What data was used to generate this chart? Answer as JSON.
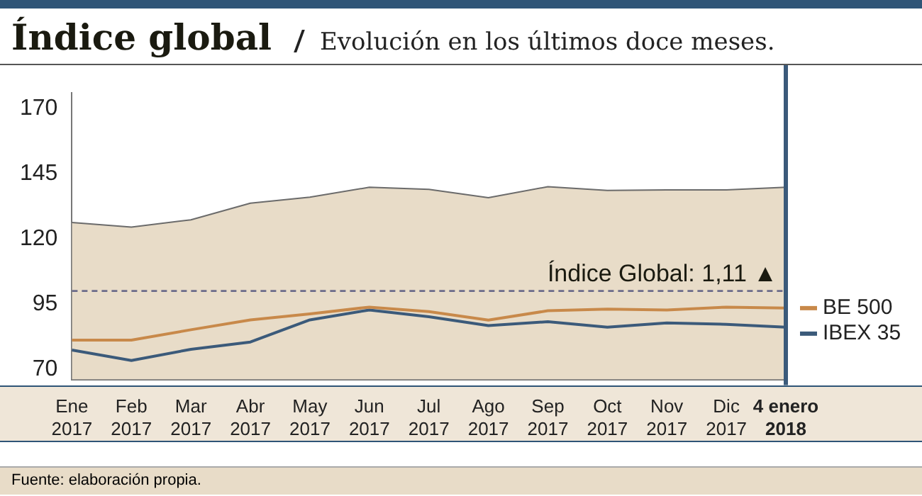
{
  "chart_data": {
    "type": "line",
    "title": "Índice global",
    "subtitle": "Evolución en los últimos doce meses.",
    "categories": [
      "Ene 2017",
      "Feb 2017",
      "Mar 2017",
      "Abr 2017",
      "May 2017",
      "Jun 2017",
      "Jul 2017",
      "Ago 2017",
      "Sep 2017",
      "Oct 2017",
      "Nov 2017",
      "Dic 2017",
      "4 enero 2018"
    ],
    "series": [
      {
        "type": "area",
        "color": "#6b6b6b",
        "values": [
          126.3,
          124.5,
          127.3,
          133.7,
          136,
          139.8,
          139,
          135.8,
          140,
          138.6,
          138.8,
          138.8,
          139.8
        ]
      },
      {
        "name": "BE 500",
        "color": "#c8894a",
        "values": [
          81.1,
          81.1,
          85.1,
          88.9,
          91.2,
          93.8,
          92.1,
          88.8,
          92.4,
          93,
          92.7,
          93.8,
          93.4
        ]
      },
      {
        "name": "IBEX 35",
        "color": "#3b5a7a",
        "values": [
          77.3,
          73.3,
          77.6,
          80.4,
          88.9,
          92.7,
          90.1,
          86.7,
          88.2,
          86.1,
          87.7,
          87.2,
          86.1
        ]
      }
    ],
    "ylim": [
      66,
      176
    ],
    "yticks": [
      70,
      95,
      120,
      145,
      170
    ],
    "grid": false,
    "legend": "right",
    "marker": "none",
    "ref_lines": [
      {
        "axis": "y",
        "value": 100,
        "color": "#6b6b8a",
        "line_style": "dashed"
      },
      {
        "axis": "x",
        "value": "4 enero 2018",
        "color": "#3b5a7a",
        "line_style": "solid"
      }
    ],
    "annotations": [
      "Índice Global: 1,11 ▲",
      "Fuente: elaboración propia."
    ]
  }
}
